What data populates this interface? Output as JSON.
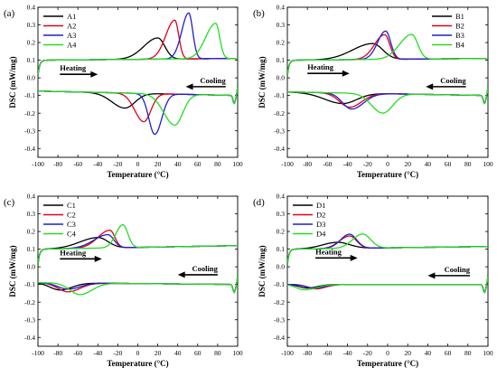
{
  "chart_data": [
    {
      "type": "line",
      "panel_label": "(a)",
      "xlabel": "Temperature (°C)",
      "ylabel": "DSC (mW/mg)",
      "xlim": [
        -100,
        100
      ],
      "ylim": [
        -0.45,
        0.4
      ],
      "xticks": [
        -100,
        -80,
        -60,
        -40,
        -20,
        0,
        20,
        40,
        60,
        80,
        100
      ],
      "yticks": [
        0.4,
        0.3,
        0.2,
        0.1,
        0.0,
        -0.1,
        -0.2,
        -0.3,
        -0.4
      ],
      "legend_position": "top-left",
      "annotations": [
        {
          "text": "Heating",
          "arrow": "right",
          "x": -78,
          "y": 0.02,
          "x_end": -40
        },
        {
          "text": "Cooling",
          "arrow": "left",
          "x": 48,
          "y": -0.05,
          "x_end": 88
        }
      ],
      "series": [
        {
          "name": "A1",
          "color": "#000000",
          "heating": {
            "base_start": 0.1,
            "base_end": 0.11,
            "peaks": [
              {
                "x": 20,
                "h": 0.12,
                "wl": 14,
                "wr": 7
              }
            ]
          },
          "cooling": {
            "base_start": -0.075,
            "base_end": -0.1,
            "peaks": [
              {
                "x": -13,
                "h": -0.085,
                "wl": 13,
                "wr": 10
              }
            ]
          }
        },
        {
          "name": "A2",
          "color": "#e0001a",
          "heating": {
            "base_start": 0.1,
            "base_end": 0.11,
            "peaks": [
              {
                "x": 37,
                "h": 0.22,
                "wl": 9,
                "wr": 4
              }
            ]
          },
          "cooling": {
            "base_start": -0.075,
            "base_end": -0.1,
            "peaks": [
              {
                "x": 6,
                "h": -0.16,
                "wl": 9,
                "wr": 7
              }
            ]
          }
        },
        {
          "name": "A3",
          "color": "#1f1fd0",
          "heating": {
            "base_start": 0.1,
            "base_end": 0.11,
            "peaks": [
              {
                "x": 51,
                "h": 0.26,
                "wl": 7,
                "wr": 4
              }
            ]
          },
          "cooling": {
            "base_start": -0.075,
            "base_end": -0.1,
            "peaks": [
              {
                "x": 17,
                "h": -0.23,
                "wl": 6,
                "wr": 7
              }
            ]
          }
        },
        {
          "name": "A4",
          "color": "#22dd22",
          "heating": {
            "base_start": 0.1,
            "base_end": 0.11,
            "peaks": [
              {
                "x": 78,
                "h": 0.2,
                "wl": 10,
                "wr": 4
              }
            ]
          },
          "cooling": {
            "base_start": -0.075,
            "base_end": -0.1,
            "peaks": [
              {
                "x": 37,
                "h": -0.175,
                "wl": 11,
                "wr": 8
              }
            ]
          }
        }
      ]
    },
    {
      "type": "line",
      "panel_label": "(b)",
      "xlabel": "Temperature (°C)",
      "ylabel": "DSC (mW/mg)",
      "xlim": [
        -100,
        100
      ],
      "ylim": [
        -0.45,
        0.4
      ],
      "xticks": [
        -100,
        -80,
        -60,
        -40,
        -20,
        0,
        20,
        40,
        60,
        80,
        100
      ],
      "yticks": [
        0.4,
        0.3,
        0.2,
        0.1,
        0.0,
        -0.1,
        -0.2,
        -0.3,
        -0.4
      ],
      "legend_position": "top-right",
      "annotations": [
        {
          "text": "Heating",
          "arrow": "right",
          "x": -80,
          "y": 0.025,
          "x_end": -38
        },
        {
          "text": "Cooling",
          "arrow": "left",
          "x": 38,
          "y": -0.05,
          "x_end": 78
        }
      ],
      "series": [
        {
          "name": "B1",
          "color": "#000000",
          "heating": {
            "base_start": 0.1,
            "base_end": 0.11,
            "peaks": [
              {
                "x": -15,
                "h": 0.09,
                "wl": 20,
                "wr": 10
              }
            ]
          },
          "cooling": {
            "base_start": -0.08,
            "base_end": -0.1,
            "peaks": [
              {
                "x": -45,
                "h": -0.06,
                "wl": 18,
                "wr": 14
              }
            ]
          }
        },
        {
          "name": "B2",
          "color": "#e0001a",
          "heating": {
            "base_start": 0.1,
            "base_end": 0.11,
            "peaks": [
              {
                "x": -3,
                "h": 0.14,
                "wl": 10,
                "wr": 5
              }
            ]
          },
          "cooling": {
            "base_start": -0.08,
            "base_end": -0.1,
            "peaks": [
              {
                "x": -38,
                "h": -0.08,
                "wl": 10,
                "wr": 12
              }
            ]
          }
        },
        {
          "name": "B3",
          "color": "#1f1fd0",
          "heating": {
            "base_start": 0.1,
            "base_end": 0.11,
            "peaks": [
              {
                "x": -2,
                "h": 0.16,
                "wl": 8,
                "wr": 5
              }
            ]
          },
          "cooling": {
            "base_start": -0.08,
            "base_end": -0.1,
            "peaks": [
              {
                "x": -36,
                "h": -0.09,
                "wl": 9,
                "wr": 12
              }
            ]
          }
        },
        {
          "name": "B4",
          "color": "#22dd22",
          "heating": {
            "base_start": 0.1,
            "base_end": 0.11,
            "peaks": [
              {
                "x": 24,
                "h": 0.14,
                "wl": 12,
                "wr": 6
              }
            ]
          },
          "cooling": {
            "base_start": -0.08,
            "base_end": -0.1,
            "peaks": [
              {
                "x": -5,
                "h": -0.11,
                "wl": 11,
                "wr": 10
              }
            ]
          }
        }
      ]
    },
    {
      "type": "line",
      "panel_label": "(c)",
      "xlabel": "Temperature (°C)",
      "ylabel": "DSC (mW/mg)",
      "xlim": [
        -100,
        100
      ],
      "ylim": [
        -0.45,
        0.4
      ],
      "xticks": [
        -100,
        -80,
        -60,
        -40,
        -20,
        0,
        20,
        40,
        60,
        80,
        100
      ],
      "yticks": [
        0.4,
        0.3,
        0.2,
        0.1,
        0.0,
        -0.1,
        -0.2,
        -0.3,
        -0.4
      ],
      "legend_position": "top-left",
      "annotations": [
        {
          "text": "Heating",
          "arrow": "right",
          "x": -78,
          "y": 0.045,
          "x_end": -36
        },
        {
          "text": "Cooling",
          "arrow": "left",
          "x": 40,
          "y": -0.045,
          "x_end": 80
        }
      ],
      "series": [
        {
          "name": "C1",
          "color": "#000000",
          "heating": {
            "base_start": 0.1,
            "base_end": 0.12,
            "peaks": [
              {
                "x": -40,
                "h": 0.06,
                "wl": 18,
                "wr": 10
              }
            ]
          },
          "cooling": {
            "base_start": -0.09,
            "base_end": -0.1,
            "peaks": [
              {
                "x": -78,
                "h": -0.04,
                "wl": 10,
                "wr": 12
              }
            ]
          }
        },
        {
          "name": "C2",
          "color": "#e0001a",
          "heating": {
            "base_start": 0.1,
            "base_end": 0.12,
            "peaks": [
              {
                "x": -28,
                "h": 0.1,
                "wl": 12,
                "wr": 5
              }
            ]
          },
          "cooling": {
            "base_start": -0.09,
            "base_end": -0.1,
            "peaks": [
              {
                "x": -70,
                "h": -0.05,
                "wl": 10,
                "wr": 12
              }
            ]
          }
        },
        {
          "name": "C3",
          "color": "#1f1fd0",
          "heating": {
            "base_start": 0.1,
            "base_end": 0.12,
            "peaks": [
              {
                "x": -30,
                "h": 0.075,
                "wl": 14,
                "wr": 6
              }
            ]
          },
          "cooling": {
            "base_start": -0.09,
            "base_end": -0.1,
            "peaks": [
              {
                "x": -70,
                "h": -0.035,
                "wl": 10,
                "wr": 12
              }
            ]
          }
        },
        {
          "name": "C4",
          "color": "#22dd22",
          "heating": {
            "base_start": 0.1,
            "base_end": 0.12,
            "peaks": [
              {
                "x": -15,
                "h": 0.13,
                "wl": 7,
                "wr": 5
              }
            ]
          },
          "cooling": {
            "base_start": -0.09,
            "base_end": -0.1,
            "peaks": [
              {
                "x": -58,
                "h": -0.065,
                "wl": 10,
                "wr": 12
              }
            ]
          }
        }
      ]
    },
    {
      "type": "line",
      "panel_label": "(d)",
      "xlabel": "Temperature (°C)",
      "ylabel": "DSC (mW/mg)",
      "xlim": [
        -100,
        100
      ],
      "ylim": [
        -0.45,
        0.4
      ],
      "xticks": [
        -100,
        -80,
        -60,
        -40,
        -20,
        0,
        20,
        40,
        60,
        80,
        100
      ],
      "yticks": [
        0.4,
        0.3,
        0.2,
        0.1,
        0.0,
        -0.1,
        -0.2,
        -0.3,
        -0.4
      ],
      "legend_position": "top-left",
      "annotations": [
        {
          "text": "Heating",
          "arrow": "right",
          "x": -72,
          "y": 0.05,
          "x_end": -30
        },
        {
          "text": "Cooling",
          "arrow": "left",
          "x": 40,
          "y": -0.05,
          "x_end": 82
        }
      ],
      "series": [
        {
          "name": "D1",
          "color": "#000000",
          "heating": {
            "base_start": 0.1,
            "base_end": 0.115,
            "peaks": [
              {
                "x": -50,
                "h": 0.035,
                "wl": 15,
                "wr": 12
              }
            ]
          },
          "cooling": {
            "base_start": -0.1,
            "base_end": -0.1,
            "peaks": [
              {
                "x": -80,
                "h": -0.02,
                "wl": 8,
                "wr": 10
              }
            ]
          }
        },
        {
          "name": "D2",
          "color": "#e0001a",
          "heating": {
            "base_start": 0.1,
            "base_end": 0.115,
            "peaks": [
              {
                "x": -38,
                "h": 0.07,
                "wl": 10,
                "wr": 7
              }
            ]
          },
          "cooling": {
            "base_start": -0.1,
            "base_end": -0.1,
            "peaks": [
              {
                "x": -72,
                "h": -0.025,
                "wl": 8,
                "wr": 10
              }
            ]
          }
        },
        {
          "name": "D3",
          "color": "#1f1fd0",
          "heating": {
            "base_start": 0.1,
            "base_end": 0.115,
            "peaks": [
              {
                "x": -38,
                "h": 0.08,
                "wl": 9,
                "wr": 7
              }
            ]
          },
          "cooling": {
            "base_start": -0.1,
            "base_end": -0.1,
            "peaks": [
              {
                "x": -73,
                "h": -0.02,
                "wl": 8,
                "wr": 10
              }
            ]
          }
        },
        {
          "name": "D4",
          "color": "#22dd22",
          "heating": {
            "base_start": 0.1,
            "base_end": 0.115,
            "peaks": [
              {
                "x": -25,
                "h": 0.08,
                "wl": 10,
                "wr": 8
              }
            ]
          },
          "cooling": {
            "base_start": -0.1,
            "base_end": -0.1,
            "peaks": [
              {
                "x": -83,
                "h": -0.03,
                "wl": 8,
                "wr": 12
              }
            ]
          }
        }
      ]
    }
  ]
}
